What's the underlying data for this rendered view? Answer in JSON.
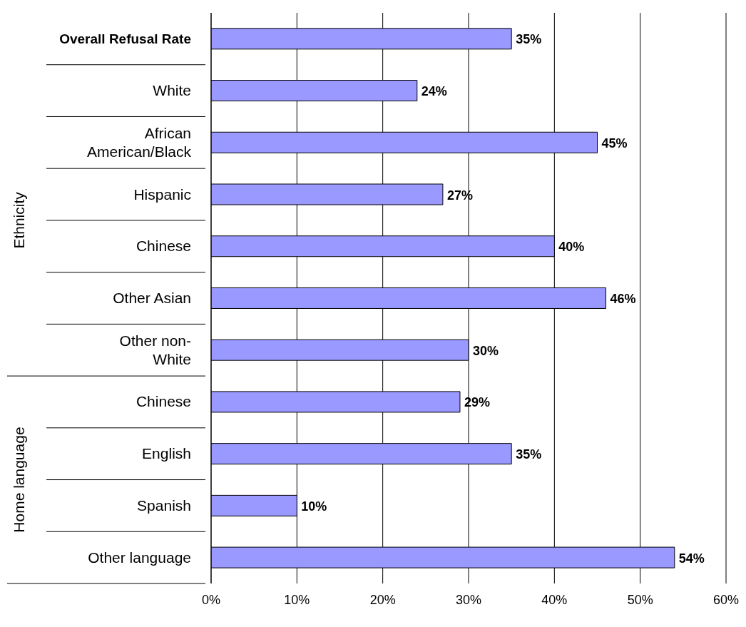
{
  "chart_data": {
    "type": "bar",
    "orientation": "horizontal",
    "categories": [
      "Overall Refusal Rate",
      "White",
      "African American/Black",
      "Hispanic",
      "Chinese",
      "Other Asian",
      "Other non-White",
      "Chinese",
      "English",
      "Spanish",
      "Other language"
    ],
    "values": [
      35,
      24,
      45,
      27,
      40,
      46,
      30,
      29,
      35,
      10,
      54
    ],
    "value_labels": [
      "35%",
      "24%",
      "45%",
      "27%",
      "40%",
      "46%",
      "30%",
      "29%",
      "35%",
      "10%",
      "54%"
    ],
    "color": "#9999ff",
    "xlim": [
      0,
      60
    ],
    "xticks": [
      {
        "value": 0,
        "label": "0%"
      },
      {
        "value": 10,
        "label": "10%"
      },
      {
        "value": 20,
        "label": "20%"
      },
      {
        "value": 30,
        "label": "30%"
      },
      {
        "value": 40,
        "label": "40%"
      },
      {
        "value": 50,
        "label": "50%"
      },
      {
        "value": 60,
        "label": "60%"
      }
    ],
    "grid": "x",
    "annotations": [
      "Ethnicity",
      "Home language"
    ]
  }
}
